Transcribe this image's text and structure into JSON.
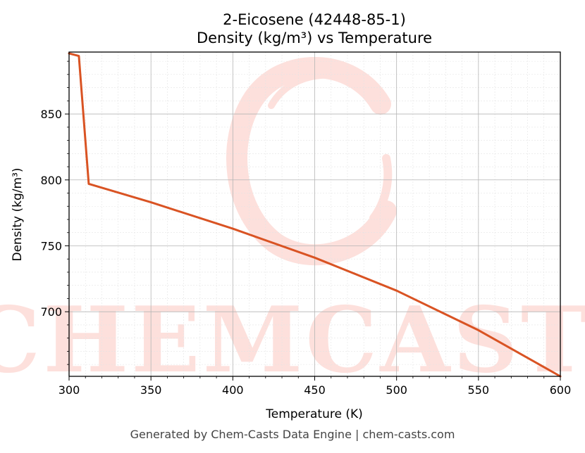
{
  "chart_data": {
    "type": "line",
    "title": "2-Eicosene (42448-85-1)",
    "subtitle": "Density (kg/m³) vs Temperature",
    "xlabel": "Temperature (K)",
    "ylabel": "Density (kg/m³)",
    "xlim": [
      300,
      600
    ],
    "ylim": [
      651,
      897
    ],
    "xticks": [
      300,
      350,
      400,
      450,
      500,
      550,
      600
    ],
    "yticks": [
      700,
      750,
      800,
      850
    ],
    "grid": true,
    "series": [
      {
        "color": "#d95323",
        "points": [
          [
            300,
            896
          ],
          [
            306,
            894
          ],
          [
            312,
            797
          ],
          [
            350,
            783
          ],
          [
            400,
            763
          ],
          [
            450,
            741
          ],
          [
            500,
            716
          ],
          [
            550,
            686
          ],
          [
            600,
            651
          ]
        ]
      }
    ]
  },
  "watermark": {
    "text": "CHEMCASTS",
    "color": "#fde0dc"
  },
  "footer": "Generated by Chem-Casts Data Engine | chem-casts.com"
}
